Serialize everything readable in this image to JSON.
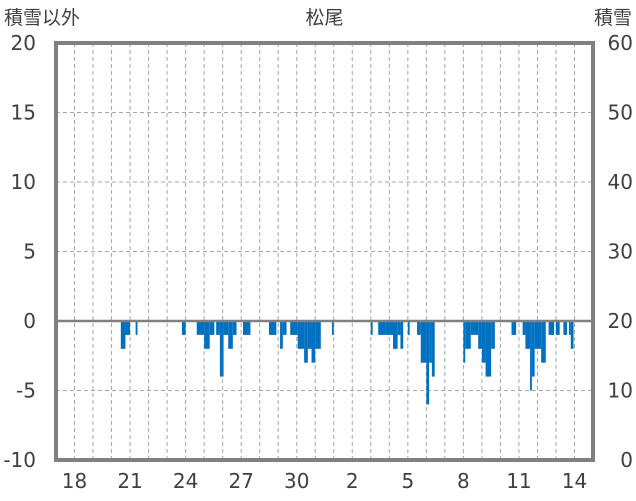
{
  "chart_data": {
    "type": "bar",
    "title": "松尾",
    "ylabel_left": "積雪以外",
    "ylabel_right": "積雪",
    "ylim_left": [
      -10,
      20
    ],
    "ylim_right": [
      0,
      60
    ],
    "yticks_left": [
      "20",
      "15",
      "10",
      "5",
      "0",
      "-5",
      "-10"
    ],
    "yticks_right": [
      "60",
      "50",
      "40",
      "30",
      "20",
      "10",
      "0"
    ],
    "x_tick_labels": [
      "18",
      "21",
      "24",
      "27",
      "30",
      "2",
      "5",
      "8",
      "11",
      "14"
    ],
    "x_tick_positions": [
      1,
      4,
      7,
      10,
      13,
      16,
      19,
      22,
      25,
      28
    ],
    "x_range_days": [
      0,
      29
    ],
    "grid": true,
    "color": "#0070C0",
    "series": [
      {
        "bars": [
          [
            3.5,
            3.75,
            -2
          ],
          [
            3.75,
            4.0,
            -1
          ],
          [
            4.3,
            4.4,
            -1
          ],
          [
            6.8,
            7.0,
            -1
          ],
          [
            7.6,
            8.0,
            -1
          ],
          [
            8.0,
            8.3,
            -2
          ],
          [
            8.3,
            8.55,
            -1
          ],
          [
            8.65,
            8.85,
            -1
          ],
          [
            8.85,
            9.05,
            -4
          ],
          [
            9.05,
            9.3,
            -1
          ],
          [
            9.3,
            9.55,
            -2
          ],
          [
            9.55,
            9.75,
            -1
          ],
          [
            10.1,
            10.5,
            -1
          ],
          [
            11.5,
            11.9,
            -1
          ],
          [
            12.1,
            12.25,
            -2
          ],
          [
            12.25,
            12.45,
            -1
          ],
          [
            12.65,
            13.05,
            -1
          ],
          [
            13.05,
            13.4,
            -2
          ],
          [
            13.4,
            13.6,
            -3
          ],
          [
            13.6,
            13.8,
            -2
          ],
          [
            13.8,
            14.0,
            -3
          ],
          [
            14.0,
            14.3,
            -2
          ],
          [
            14.9,
            15.0,
            -1
          ],
          [
            17.0,
            17.1,
            -1
          ],
          [
            17.4,
            17.8,
            -1
          ],
          [
            17.8,
            18.2,
            -1
          ],
          [
            18.2,
            18.45,
            -2
          ],
          [
            18.45,
            18.6,
            -1
          ],
          [
            18.6,
            18.75,
            -2
          ],
          [
            19.0,
            19.1,
            -1
          ],
          [
            19.5,
            19.7,
            -1
          ],
          [
            19.7,
            20.0,
            -3
          ],
          [
            20.0,
            20.15,
            -6
          ],
          [
            20.15,
            20.3,
            -3
          ],
          [
            20.3,
            20.45,
            -4
          ],
          [
            22.0,
            22.1,
            -3
          ],
          [
            22.1,
            22.4,
            -2
          ],
          [
            22.4,
            22.8,
            -1
          ],
          [
            22.8,
            23.0,
            -2
          ],
          [
            23.0,
            23.2,
            -3
          ],
          [
            23.2,
            23.5,
            -4
          ],
          [
            23.5,
            23.7,
            -2
          ],
          [
            24.6,
            24.85,
            -1
          ],
          [
            25.2,
            25.35,
            -1
          ],
          [
            25.35,
            25.6,
            -2
          ],
          [
            25.6,
            25.7,
            -5
          ],
          [
            25.7,
            25.85,
            -4
          ],
          [
            25.85,
            26.2,
            -2
          ],
          [
            26.2,
            26.45,
            -3
          ],
          [
            26.6,
            26.9,
            -1
          ],
          [
            27.0,
            27.2,
            -1
          ],
          [
            27.4,
            27.6,
            -1
          ],
          [
            27.7,
            27.8,
            -1
          ],
          [
            27.8,
            27.95,
            -2
          ]
        ]
      }
    ]
  }
}
